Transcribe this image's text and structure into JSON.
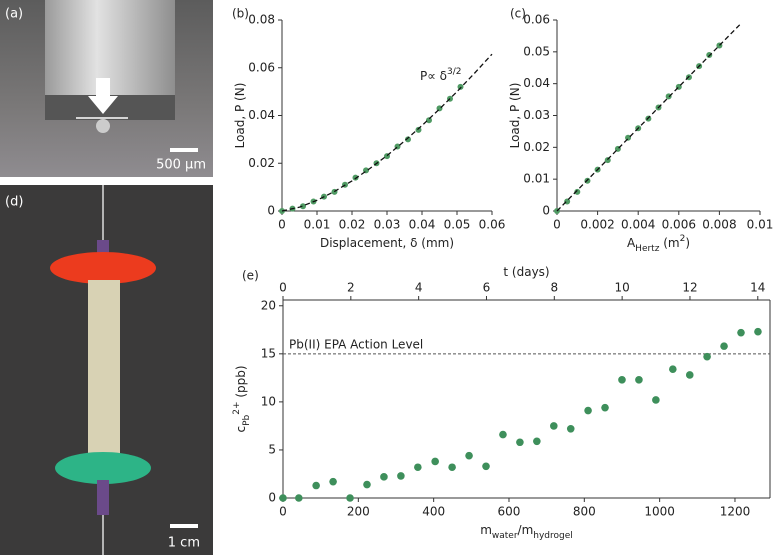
{
  "photos": [
    {
      "label": "(a)",
      "scale_bar": "500 µm"
    },
    {
      "label": "(d)",
      "scale_bar": "1 cm"
    }
  ],
  "chart_data": [
    {
      "type": "scatter",
      "label": "(b)",
      "xlabel": [
        {
          "text": "Displacement, δ (mm)"
        }
      ],
      "ylabel": [
        {
          "text": "Load, P (N)"
        }
      ],
      "annotation": [
        {
          "text": "P∝ δ"
        },
        {
          "text": "3/2",
          "shift": "super"
        }
      ],
      "xlim": [
        0,
        0.06
      ],
      "xticks": [
        0,
        0.01,
        0.02,
        0.03,
        0.04,
        0.05,
        0.06
      ],
      "ylim": [
        0,
        0.08
      ],
      "yticks": [
        0,
        0.02,
        0.04,
        0.06,
        0.08
      ],
      "series": [
        {
          "color": "#4f9a63",
          "x": [
            0,
            0.003,
            0.006,
            0.009,
            0.012,
            0.015,
            0.018,
            0.021,
            0.024,
            0.027,
            0.03,
            0.033,
            0.036,
            0.039,
            0.042,
            0.045,
            0.048,
            0.051
          ],
          "values": [
            0,
            0.001,
            0.002,
            0.004,
            0.006,
            0.008,
            0.011,
            0.014,
            0.017,
            0.02,
            0.023,
            0.027,
            0.03,
            0.034,
            0.038,
            0.043,
            0.047,
            0.052
          ]
        },
        {
          "color": "#111111",
          "style": "dashed",
          "x": [
            0,
            0.005,
            0.01,
            0.015,
            0.02,
            0.025,
            0.03,
            0.035,
            0.04,
            0.045,
            0.05,
            0.055,
            0.06
          ],
          "values": [
            0,
            0.0016,
            0.0045,
            0.0082,
            0.0126,
            0.0177,
            0.0232,
            0.0293,
            0.0358,
            0.0427,
            0.05,
            0.0577,
            0.0657
          ]
        }
      ]
    },
    {
      "type": "scatter",
      "label": "(c)",
      "xlabel": [
        {
          "text": "A"
        },
        {
          "text": "Hertz",
          "shift": "sub"
        },
        {
          "text": " (m"
        },
        {
          "text": "2",
          "shift": "super"
        },
        {
          "text": ")"
        }
      ],
      "ylabel": [
        {
          "text": "Load, P (N)"
        }
      ],
      "xlim": [
        0,
        0.01
      ],
      "xticks": [
        0,
        0.002,
        0.004,
        0.006,
        0.008,
        0.01
      ],
      "ylim": [
        0,
        0.06
      ],
      "yticks": [
        0,
        0.01,
        0.02,
        0.03,
        0.04,
        0.05,
        0.06
      ],
      "series": [
        {
          "color": "#4f9a63",
          "x": [
            0,
            0.0005,
            0.001,
            0.0015,
            0.002,
            0.0025,
            0.003,
            0.0035,
            0.004,
            0.0045,
            0.005,
            0.0055,
            0.006,
            0.0065,
            0.007,
            0.0075,
            0.008
          ],
          "values": [
            0,
            0.003,
            0.006,
            0.0095,
            0.013,
            0.016,
            0.0195,
            0.023,
            0.026,
            0.029,
            0.0325,
            0.036,
            0.039,
            0.042,
            0.0455,
            0.049,
            0.052
          ]
        },
        {
          "color": "#111111",
          "style": "dashed",
          "x": [
            0,
            0.009
          ],
          "values": [
            0,
            0.0585
          ]
        }
      ]
    },
    {
      "type": "scatter",
      "label": "(e)",
      "frame": true,
      "xlabel": [
        {
          "text": "m"
        },
        {
          "text": "water",
          "shift": "sub"
        },
        {
          "text": "/m"
        },
        {
          "text": "hydrogel",
          "shift": "sub"
        }
      ],
      "ylabel": [
        {
          "text": "c"
        },
        {
          "text": "Pb",
          "shift": "sub"
        },
        {
          "text": "2+",
          "shift": "super"
        },
        {
          "text": " (ppb)"
        }
      ],
      "x2label": [
        {
          "text": "t (days)"
        }
      ],
      "xlim": [
        0,
        1293
      ],
      "xticks": [
        0,
        200,
        400,
        600,
        800,
        1000,
        1200
      ],
      "x2lim": [
        0,
        14.36
      ],
      "x2ticks": [
        0,
        2,
        4,
        6,
        8,
        10,
        12,
        14
      ],
      "ylim": [
        0,
        20.6
      ],
      "yticks": [
        0,
        5,
        10,
        15,
        20
      ],
      "hline": {
        "value": 15,
        "label": "Pb(II) EPA Action Level"
      },
      "series": [
        {
          "color": "#3e8f5b",
          "x": [
            0,
            42,
            88,
            133,
            178,
            223,
            268,
            313,
            358,
            404,
            449,
            494,
            539,
            584,
            629,
            674,
            719,
            764,
            810,
            855,
            900,
            945,
            990,
            1035,
            1080,
            1126,
            1171,
            1216,
            1261
          ],
          "values": [
            0,
            0,
            1.3,
            1.7,
            0,
            1.4,
            2.2,
            2.3,
            3.2,
            3.8,
            3.2,
            4.4,
            3.3,
            6.6,
            5.8,
            5.9,
            7.5,
            7.2,
            9.1,
            9.4,
            12.3,
            12.3,
            10.2,
            13.4,
            12.8,
            14.7,
            15.8,
            17.2,
            17.3
          ]
        }
      ]
    }
  ]
}
